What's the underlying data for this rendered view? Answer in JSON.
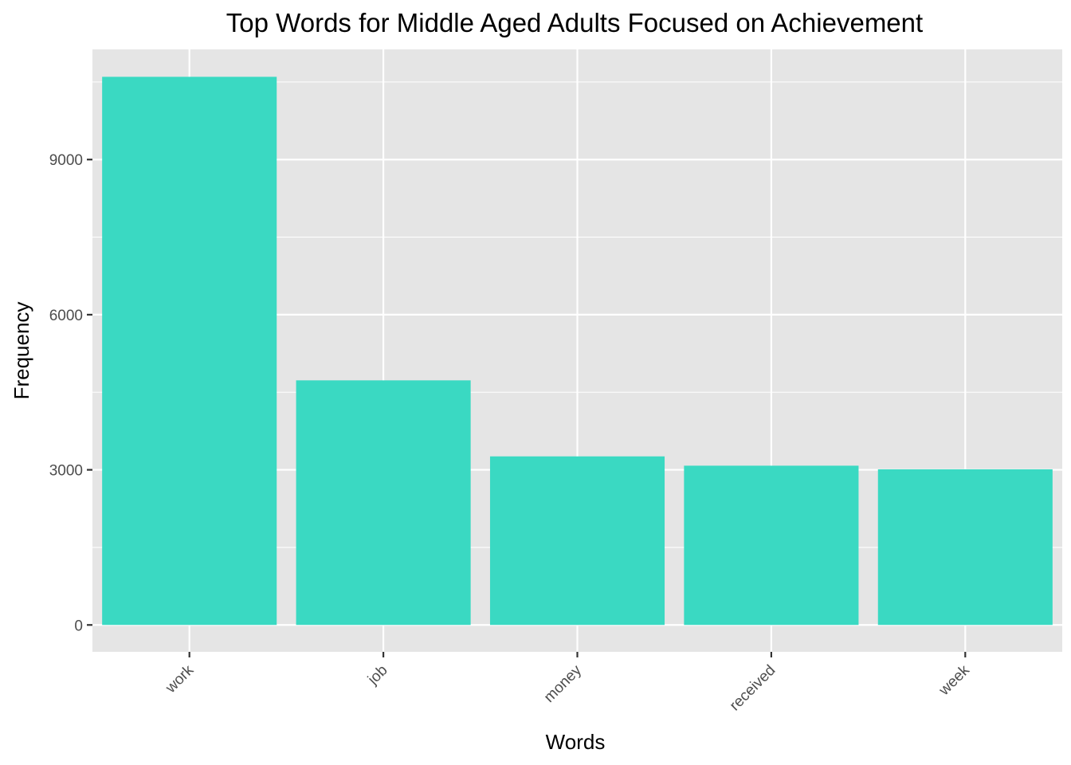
{
  "chart_data": {
    "type": "bar",
    "title": "Top Words for Middle Aged Adults Focused on Achievement",
    "xlabel": "Words",
    "ylabel": "Frequency",
    "categories": [
      "work",
      "job",
      "money",
      "received",
      "week"
    ],
    "values": [
      10600,
      4730,
      3260,
      3080,
      3010
    ],
    "ylim": [
      -520,
      11130
    ],
    "yticks": [
      0,
      3000,
      6000,
      9000
    ],
    "ytick_labels": [
      "0",
      "3000",
      "6000",
      "9000"
    ],
    "grid": true,
    "legend": "none",
    "colors": {
      "bar": "#3ad9c2",
      "panel": "#e5e5e5",
      "grid": "#ffffff",
      "tick_text": "#4d4d4d",
      "tick_mark": "#333333"
    }
  }
}
